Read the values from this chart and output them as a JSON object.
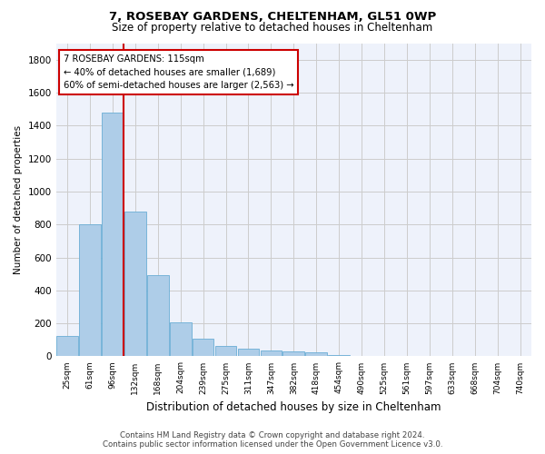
{
  "title1": "7, ROSEBAY GARDENS, CHELTENHAM, GL51 0WP",
  "title2": "Size of property relative to detached houses in Cheltenham",
  "xlabel": "Distribution of detached houses by size in Cheltenham",
  "ylabel": "Number of detached properties",
  "footer1": "Contains HM Land Registry data © Crown copyright and database right 2024.",
  "footer2": "Contains public sector information licensed under the Open Government Licence v3.0.",
  "bar_labels": [
    "25sqm",
    "61sqm",
    "96sqm",
    "132sqm",
    "168sqm",
    "204sqm",
    "239sqm",
    "275sqm",
    "311sqm",
    "347sqm",
    "382sqm",
    "418sqm",
    "454sqm",
    "490sqm",
    "525sqm",
    "561sqm",
    "597sqm",
    "633sqm",
    "668sqm",
    "704sqm",
    "740sqm"
  ],
  "bar_values": [
    125,
    800,
    1480,
    880,
    490,
    205,
    105,
    65,
    45,
    35,
    28,
    22,
    10,
    5,
    3,
    2,
    2,
    1,
    1,
    1,
    2
  ],
  "bar_color": "#aecde8",
  "bar_edgecolor": "#6aadd5",
  "vline_x": 2.48,
  "annotation_title": "7 ROSEBAY GARDENS: 115sqm",
  "annotation_line1": "← 40% of detached houses are smaller (1,689)",
  "annotation_line2": "60% of semi-detached houses are larger (2,563) →",
  "vline_color": "#cc0000",
  "annotation_box_edgecolor": "#cc0000",
  "ylim": [
    0,
    1900
  ],
  "yticks": [
    0,
    200,
    400,
    600,
    800,
    1000,
    1200,
    1400,
    1600,
    1800
  ],
  "grid_color": "#cccccc",
  "bg_color": "#eef2fb",
  "figsize": [
    6.0,
    5.0
  ],
  "dpi": 100
}
